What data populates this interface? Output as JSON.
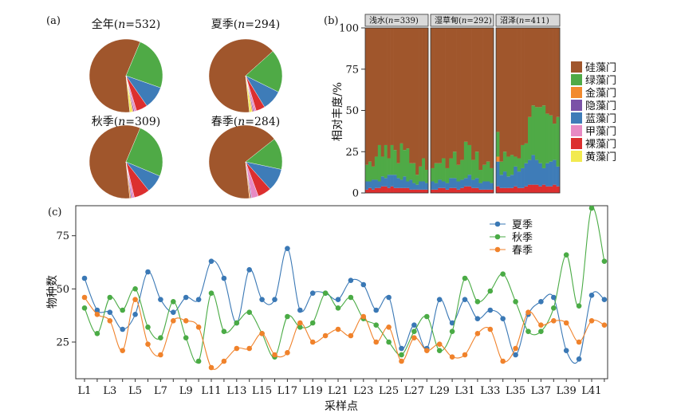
{
  "panels": {
    "a": {
      "letter": "(a)",
      "pies": [
        {
          "title_prefix": "全年(",
          "n_label": "n",
          "title_suffix": "=532)",
          "slices": [
            {
              "name": "硅藻门",
              "value": 58
            },
            {
              "name": "绿藻门",
              "value": 24
            },
            {
              "name": "蓝藻门",
              "value": 10
            },
            {
              "name": "裸藻门",
              "value": 5
            },
            {
              "name": "甲藻门",
              "value": 1
            },
            {
              "name": "隐藻门",
              "value": 0.5
            },
            {
              "name": "金藻门",
              "value": 0.5
            },
            {
              "name": "黄藻门",
              "value": 1
            }
          ]
        },
        {
          "title_prefix": "夏季(",
          "n_label": "n",
          "title_suffix": "=294)",
          "slices": [
            {
              "name": "硅藻门",
              "value": 65
            },
            {
              "name": "绿藻门",
              "value": 19
            },
            {
              "name": "蓝藻门",
              "value": 9
            },
            {
              "name": "裸藻门",
              "value": 4
            },
            {
              "name": "甲藻门",
              "value": 1
            },
            {
              "name": "隐藻门",
              "value": 0.5
            },
            {
              "name": "金藻门",
              "value": 0.5
            },
            {
              "name": "黄藻门",
              "value": 1
            }
          ]
        },
        {
          "title_prefix": "秋季(",
          "n_label": "n",
          "title_suffix": "=309)",
          "slices": [
            {
              "name": "硅藻门",
              "value": 58
            },
            {
              "name": "绿藻门",
              "value": 25
            },
            {
              "name": "蓝藻门",
              "value": 8
            },
            {
              "name": "裸藻门",
              "value": 7
            },
            {
              "name": "甲藻门",
              "value": 1
            },
            {
              "name": "隐藻门",
              "value": 0.5
            },
            {
              "name": "金藻门",
              "value": 0.5
            },
            {
              "name": "黄藻门",
              "value": 0
            }
          ]
        },
        {
          "title_prefix": "春季(",
          "n_label": "n",
          "title_suffix": "=284)",
          "slices": [
            {
              "name": "硅藻门",
              "value": 66
            },
            {
              "name": "绿藻门",
              "value": 14
            },
            {
              "name": "蓝藻门",
              "value": 10
            },
            {
              "name": "裸藻门",
              "value": 6
            },
            {
              "name": "甲藻门",
              "value": 3
            },
            {
              "name": "隐藻门",
              "value": 0.5
            },
            {
              "name": "金藻门",
              "value": 0.5
            },
            {
              "name": "黄藻门",
              "value": 0
            }
          ]
        }
      ]
    },
    "b": {
      "letter": "(b)",
      "type": "stacked-bar",
      "ylabel": "相对丰度/%",
      "ylim": [
        0,
        100
      ],
      "yticks": [
        "0",
        "25",
        "50",
        "75",
        "100"
      ],
      "stack_order": [
        "硅藻门",
        "绿藻门",
        "金藻门",
        "隐藻门",
        "蓝藻门",
        "甲藻门",
        "裸藻门",
        "黄藻门"
      ],
      "colors": {
        "硅藻门": "#a0562c",
        "绿藻门": "#4faa46",
        "金藻门": "#f28a2e",
        "隐藻门": "#7b52a7",
        "蓝藻门": "#3e7cb8",
        "甲藻门": "#e78ac3",
        "裸藻门": "#dc2f2f",
        "黄藻门": "#f2ea4f"
      },
      "facets": [
        {
          "prefix": "浅水(",
          "n_label": "n",
          "suffix": "=339)",
          "bars": [
            {
              "绿藻门": 10,
              "蓝藻门": 5,
              "裸藻门": 2
            },
            {
              "绿藻门": 12,
              "蓝藻门": 4,
              "裸藻门": 3
            },
            {
              "绿藻门": 8,
              "蓝藻门": 6,
              "裸藻门": 2
            },
            {
              "绿藻门": 14,
              "蓝藻门": 5,
              "裸藻门": 3
            },
            {
              "绿藻门": 22,
              "蓝藻门": 4,
              "裸藻门": 3
            },
            {
              "绿藻门": 12,
              "蓝藻门": 6,
              "裸藻门": 4
            },
            {
              "绿藻门": 20,
              "蓝藻门": 5,
              "裸藻门": 4
            },
            {
              "绿藻门": 10,
              "蓝藻门": 8,
              "裸藻门": 3
            },
            {
              "绿藻门": 18,
              "蓝藻门": 7,
              "裸藻门": 4
            },
            {
              "绿藻门": 15,
              "蓝藻门": 8,
              "裸藻门": 3
            },
            {
              "绿藻门": 9,
              "蓝藻门": 6,
              "裸藻门": 3
            },
            {
              "绿藻门": 22,
              "蓝藻门": 5,
              "裸藻门": 3
            },
            {
              "绿藻门": 16,
              "蓝藻门": 7,
              "裸藻门": 3
            },
            {
              "绿藻门": 20,
              "蓝藻门": 4,
              "裸藻门": 3
            },
            {
              "绿藻门": 10,
              "蓝藻门": 6,
              "裸藻门": 2
            },
            {
              "绿藻门": 12,
              "蓝藻门": 4,
              "裸藻门": 2
            },
            {
              "绿藻门": 6,
              "蓝藻门": 3,
              "裸藻门": 2
            },
            {
              "绿藻门": 9,
              "蓝藻门": 5,
              "裸藻门": 2
            },
            {
              "绿藻门": 14,
              "蓝藻门": 5,
              "裸藻门": 2
            },
            {
              "绿藻门": 8,
              "蓝藻门": 4,
              "裸藻门": 2
            }
          ]
        },
        {
          "prefix": "湿草甸(",
          "n_label": "n",
          "suffix": "=292)",
          "bars": [
            {
              "绿藻门": 8,
              "蓝藻门": 5,
              "裸藻门": 2
            },
            {
              "绿藻门": 12,
              "蓝藻门": 4,
              "裸藻门": 2
            },
            {
              "绿藻门": 10,
              "蓝藻门": 5,
              "裸藻门": 3
            },
            {
              "绿藻门": 14,
              "蓝藻门": 4,
              "裸藻门": 3
            },
            {
              "绿藻门": 9,
              "蓝藻门": 4,
              "裸藻门": 2
            },
            {
              "绿藻门": 12,
              "蓝藻门": 6,
              "裸藻门": 3
            },
            {
              "绿藻门": 16,
              "蓝藻门": 6,
              "裸藻门": 3
            },
            {
              "绿藻门": 10,
              "蓝藻门": 5,
              "裸藻门": 2
            },
            {
              "绿藻门": 12,
              "蓝藻门": 5,
              "裸藻门": 3
            },
            {
              "绿藻门": 22,
              "蓝藻门": 5,
              "裸藻门": 4
            },
            {
              "绿藻门": 18,
              "蓝藻门": 7,
              "裸藻门": 4
            },
            {
              "绿藻门": 12,
              "蓝藻门": 5,
              "裸藻门": 3
            },
            {
              "绿藻门": 16,
              "蓝藻门": 6,
              "裸藻门": 3
            },
            {
              "绿藻门": 8,
              "蓝藻门": 4,
              "裸藻门": 2
            },
            {
              "绿藻门": 10,
              "蓝藻门": 5,
              "裸藻门": 2
            },
            {
              "绿藻门": 12,
              "蓝藻门": 5,
              "裸藻门": 2
            },
            {
              "绿藻门": 9,
              "蓝藻门": 4,
              "裸藻门": 2
            }
          ]
        },
        {
          "prefix": "沼泽(",
          "n_label": "n",
          "suffix": "=411)",
          "bars": [
            {
              "绿藻门": 15,
              "蓝藻门": 15,
              "裸藻门": 4,
              "金藻门": 3
            },
            {
              "绿藻门": 8,
              "蓝藻门": 8,
              "裸藻门": 3
            },
            {
              "绿藻门": 12,
              "蓝藻门": 10,
              "裸藻门": 3
            },
            {
              "绿藻门": 12,
              "蓝藻门": 7,
              "裸藻门": 3
            },
            {
              "绿藻门": 12,
              "蓝藻门": 8,
              "裸藻门": 3
            },
            {
              "绿藻门": 6,
              "蓝藻门": 12,
              "裸藻门": 4
            },
            {
              "绿藻门": 8,
              "蓝藻门": 10,
              "裸藻门": 3
            },
            {
              "绿藻门": 14,
              "蓝藻门": 12,
              "裸藻门": 3
            },
            {
              "绿藻门": 12,
              "蓝藻门": 14,
              "裸藻门": 4
            },
            {
              "绿藻门": 26,
              "蓝藻门": 15,
              "裸藻门": 5
            },
            {
              "绿藻门": 30,
              "蓝藻门": 18,
              "裸藻门": 5
            },
            {
              "绿藻门": 32,
              "蓝藻门": 15,
              "裸藻门": 5
            },
            {
              "绿藻门": 34,
              "蓝藻门": 14,
              "裸藻门": 4
            },
            {
              "绿藻门": 38,
              "蓝藻门": 10,
              "裸藻门": 5
            },
            {
              "绿藻门": 30,
              "蓝藻门": 14,
              "裸藻门": 4
            },
            {
              "绿藻门": 28,
              "蓝藻门": 15,
              "裸藻门": 4
            },
            {
              "绿藻门": 22,
              "蓝藻门": 15,
              "裸藻门": 5
            },
            {
              "绿藻门": 30,
              "蓝藻门": 12,
              "裸藻门": 4
            }
          ]
        }
      ]
    },
    "c": {
      "letter": "(c)",
      "type": "line",
      "ylabel": "物种数",
      "xlabel": "采样点",
      "ylim": [
        10,
        90
      ],
      "yticks": [
        25,
        50,
        75
      ],
      "x": [
        "L1",
        "L2",
        "L3",
        "L4",
        "L5",
        "L6",
        "L7",
        "L8",
        "L9",
        "L10",
        "L11",
        "L12",
        "L13",
        "L14",
        "L15",
        "L16",
        "L17",
        "L18",
        "L19",
        "L20",
        "L21",
        "L22",
        "L23",
        "L24",
        "L25",
        "L26",
        "L27",
        "L28",
        "L29",
        "L30",
        "L31",
        "L32",
        "L33",
        "L34",
        "L35",
        "L36",
        "L37",
        "L38",
        "L39",
        "L40",
        "L41",
        "L42"
      ],
      "xtick_labels": [
        "L1",
        "L3",
        "L5",
        "L7",
        "L9",
        "L11",
        "L13",
        "L15",
        "L17",
        "L19",
        "L21",
        "L23",
        "L25",
        "L27",
        "L29",
        "L31",
        "L33",
        "L35",
        "L37",
        "L39",
        "L41"
      ],
      "series": [
        {
          "name": "夏季",
          "color": "#3a78b5",
          "values": [
            55,
            40,
            39,
            31,
            38,
            58,
            45,
            39,
            46,
            45,
            63,
            55,
            34,
            59,
            45,
            45,
            69,
            40,
            48,
            48,
            45,
            54,
            52,
            40,
            46,
            22,
            33,
            22,
            45,
            34,
            45,
            36,
            40,
            36,
            19,
            38,
            44,
            46,
            21,
            17,
            47,
            45
          ]
        },
        {
          "name": "秋季",
          "color": "#4aab45",
          "values": [
            41,
            29,
            46,
            40,
            50,
            32,
            27,
            44,
            27,
            16,
            48,
            30,
            34,
            39,
            29,
            18,
            37,
            32,
            34,
            48,
            41,
            46,
            36,
            33,
            25,
            19,
            30,
            37,
            21,
            30,
            55,
            44,
            49,
            57,
            44,
            30,
            30,
            41,
            66,
            42,
            88,
            63
          ]
        },
        {
          "name": "春季",
          "color": "#f0822b",
          "values": [
            46,
            38,
            35,
            21,
            45,
            24,
            19,
            35,
            35,
            32,
            13,
            16,
            22,
            22,
            29,
            19,
            20,
            34,
            25,
            28,
            31,
            28,
            37,
            25,
            32,
            16,
            27,
            21,
            24,
            18,
            19,
            29,
            31,
            16,
            22,
            39,
            33,
            35,
            34,
            25,
            35,
            33
          ]
        }
      ]
    }
  }
}
